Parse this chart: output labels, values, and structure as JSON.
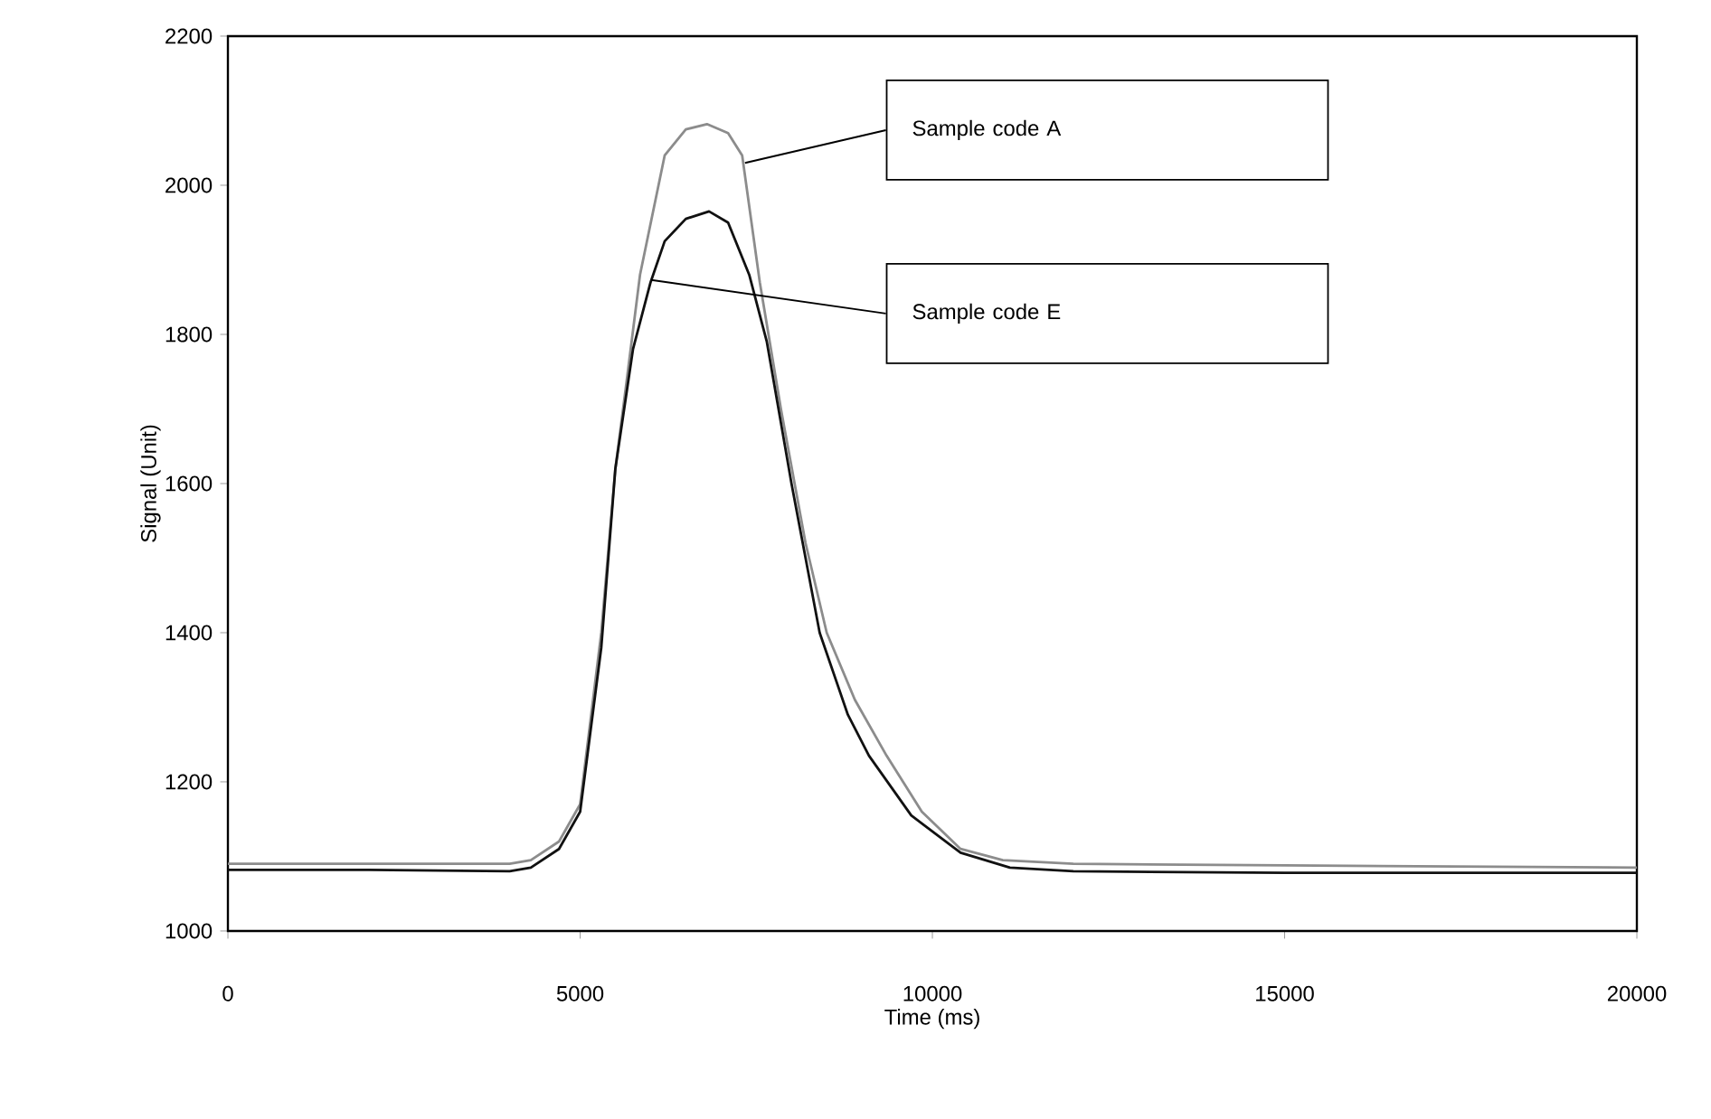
{
  "chart_data": {
    "type": "line",
    "xlabel": "Time (ms)",
    "ylabel": "Signal (Unit)",
    "xlim": [
      0,
      20000
    ],
    "ylim": [
      1000,
      2200
    ],
    "xticks": [
      0,
      5000,
      10000,
      15000,
      20000
    ],
    "yticks": [
      1000,
      1200,
      1400,
      1600,
      1800,
      2000,
      2200
    ],
    "grid": false,
    "marker": "none",
    "line_style": "solid",
    "series": [
      {
        "color": "#8c8c8c",
        "x": [
          0,
          2000,
          4000,
          4300,
          4700,
          5000,
          5300,
          5500,
          5650,
          5850,
          6200,
          6500,
          6800,
          7100,
          7300,
          7550,
          7850,
          8200,
          8500,
          8900,
          9350,
          9850,
          10400,
          11000,
          12000,
          15000,
          20000
        ],
        "values": [
          1090,
          1090,
          1090,
          1095,
          1120,
          1170,
          1400,
          1620,
          1730,
          1880,
          2040,
          2075,
          2082,
          2070,
          2040,
          1870,
          1700,
          1520,
          1400,
          1310,
          1235,
          1160,
          1110,
          1095,
          1090,
          1088,
          1085
        ]
      },
      {
        "color": "#111111",
        "x": [
          0,
          2000,
          4000,
          4300,
          4700,
          5000,
          5300,
          5500,
          5750,
          6000,
          6200,
          6500,
          6830,
          7100,
          7400,
          7650,
          8000,
          8400,
          8800,
          9100,
          9700,
          10400,
          11100,
          12000,
          15000,
          20000
        ],
        "values": [
          1082,
          1082,
          1080,
          1085,
          1110,
          1160,
          1380,
          1620,
          1780,
          1870,
          1925,
          1955,
          1965,
          1950,
          1880,
          1790,
          1600,
          1400,
          1290,
          1235,
          1155,
          1105,
          1085,
          1080,
          1078,
          1078
        ]
      }
    ],
    "annotations": [
      {
        "text": "Sample code A",
        "x": 7340,
        "y": 2030
      },
      {
        "text": "Sample code E",
        "x": 6010,
        "y": 1873
      }
    ]
  }
}
